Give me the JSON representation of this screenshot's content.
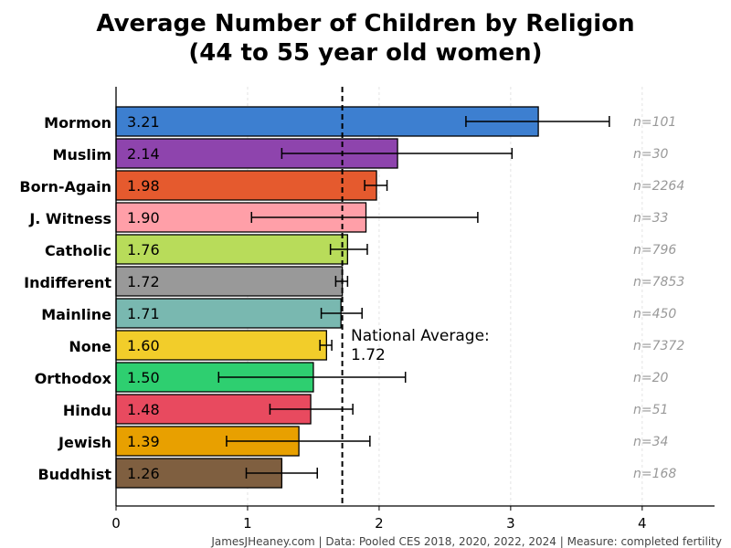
{
  "chart_data": {
    "type": "bar",
    "orientation": "horizontal",
    "title": "Average Number of Children by Religion",
    "subtitle": "(44 to 55 year old women)",
    "categories": [
      "Mormon",
      "Muslim",
      "Born-Again",
      "J. Witness",
      "Catholic",
      "Indifferent",
      "Mainline",
      "None",
      "Orthodox",
      "Hindu",
      "Jewish",
      "Buddhist"
    ],
    "values": [
      3.21,
      2.14,
      1.98,
      1.9,
      1.76,
      1.72,
      1.71,
      1.6,
      1.5,
      1.48,
      1.39,
      1.26
    ],
    "value_labels": [
      "3.21",
      "2.14",
      "1.98",
      "1.90",
      "1.76",
      "1.72",
      "1.71",
      "1.60",
      "1.50",
      "1.48",
      "1.39",
      "1.26"
    ],
    "ci_low": [
      2.66,
      1.26,
      1.89,
      1.03,
      1.63,
      1.67,
      1.56,
      1.55,
      0.78,
      1.17,
      0.84,
      0.99
    ],
    "ci_high": [
      3.75,
      3.01,
      2.06,
      2.75,
      1.91,
      1.76,
      1.87,
      1.64,
      2.2,
      1.8,
      1.93,
      1.53
    ],
    "n_labels": [
      "n=101",
      "n=30",
      "n=2264",
      "n=33",
      "n=796",
      "n=7853",
      "n=450",
      "n=7372",
      "n=20",
      "n=51",
      "n=34",
      "n=168"
    ],
    "colors": [
      "#3d7fd0",
      "#8e44ad",
      "#e55a2e",
      "#ff9fa8",
      "#b8dc5a",
      "#999999",
      "#79b8b0",
      "#f2cd2a",
      "#2ecf70",
      "#e84a5f",
      "#e8a000",
      "#7f5f40"
    ],
    "xlim": [
      0,
      4.55
    ],
    "xticks": [
      "0",
      "1",
      "2",
      "3",
      "4"
    ],
    "reference_line": {
      "value": 1.72,
      "label_line1": "National Average:",
      "label_line2": "1.72"
    },
    "grid": true,
    "footer": "JamesJHeaney.com | Data: Pooled CES 2018, 2020, 2022, 2024 | Measure: completed fertility"
  }
}
